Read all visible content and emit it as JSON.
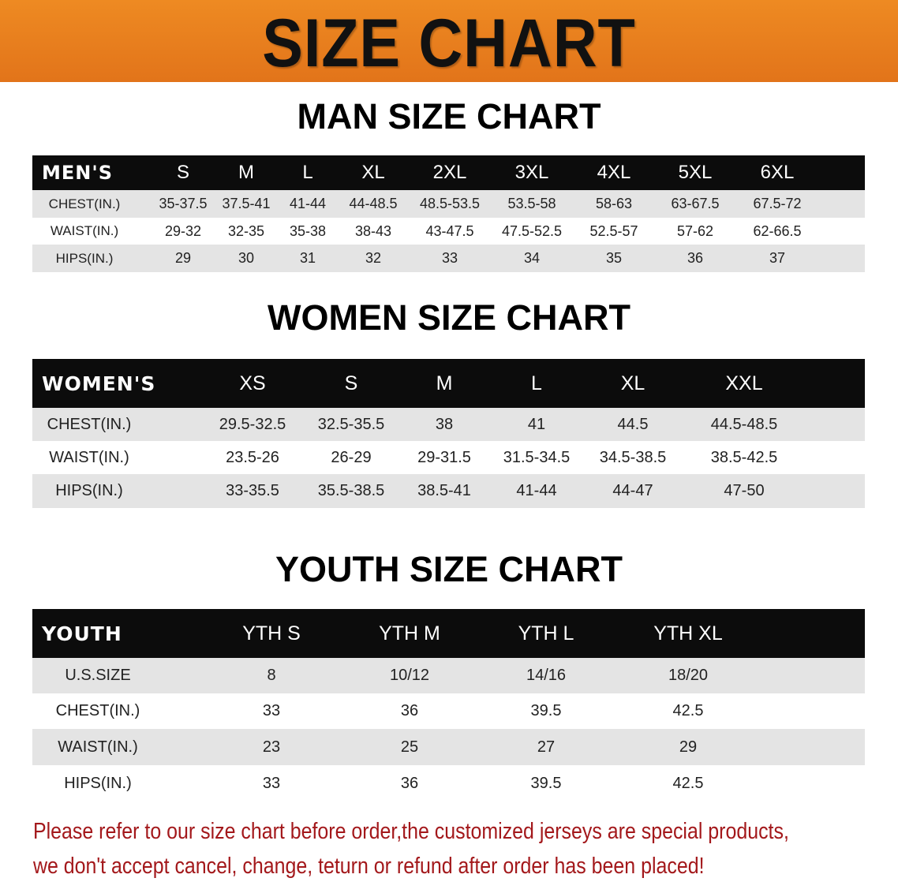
{
  "banner": {
    "title": "SIZE CHART",
    "color": "#e8801f"
  },
  "men": {
    "title": "MAN SIZE CHART",
    "header": [
      "MEN'S",
      "S",
      "M",
      "L",
      "XL",
      "2XL",
      "3XL",
      "4XL",
      "5XL",
      "6XL"
    ],
    "rows": [
      [
        "CHEST(IN.)",
        "35-37.5",
        "37.5-41",
        "41-44",
        "44-48.5",
        "48.5-53.5",
        "53.5-58",
        "58-63",
        "63-67.5",
        "67.5-72"
      ],
      [
        "WAIST(IN.)",
        "29-32",
        "32-35",
        "35-38",
        "38-43",
        "43-47.5",
        "47.5-52.5",
        "52.5-57",
        "57-62",
        "62-66.5"
      ],
      [
        "HIPS(IN.)",
        "29",
        "30",
        "31",
        "32",
        "33",
        "34",
        "35",
        "36",
        "37"
      ]
    ]
  },
  "women": {
    "title": "WOMEN SIZE CHART",
    "header": [
      "WOMEN'S",
      "XS",
      "S",
      "M",
      "L",
      "XL",
      "XXL"
    ],
    "rows": [
      [
        "CHEST(IN.)",
        "29.5-32.5",
        "32.5-35.5",
        "38",
        "41",
        "44.5",
        "44.5-48.5"
      ],
      [
        "WAIST(IN.)",
        "23.5-26",
        "26-29",
        "29-31.5",
        "31.5-34.5",
        "34.5-38.5",
        "38.5-42.5"
      ],
      [
        "HIPS(IN.)",
        "33-35.5",
        "35.5-38.5",
        "38.5-41",
        "41-44",
        "44-47",
        "47-50"
      ]
    ]
  },
  "youth": {
    "title": "YOUTH SIZE CHART",
    "header": [
      "YOUTH",
      "YTH S",
      "YTH M",
      "YTH L",
      "YTH XL"
    ],
    "rows": [
      [
        "U.S.SIZE",
        "8",
        "10/12",
        "14/16",
        "18/20"
      ],
      [
        "CHEST(IN.)",
        "33",
        "36",
        "39.5",
        "42.5"
      ],
      [
        "WAIST(IN.)",
        "23",
        "25",
        "27",
        "29"
      ],
      [
        "HIPS(IN.)",
        "33",
        "36",
        "39.5",
        "42.5"
      ]
    ]
  },
  "notice": {
    "line1": "Please refer to our size chart before order,the customized jerseys are special products,",
    "line2": "we don't accept cancel, change, teturn or refund after order has been placed!",
    "color": "#a3181b"
  }
}
